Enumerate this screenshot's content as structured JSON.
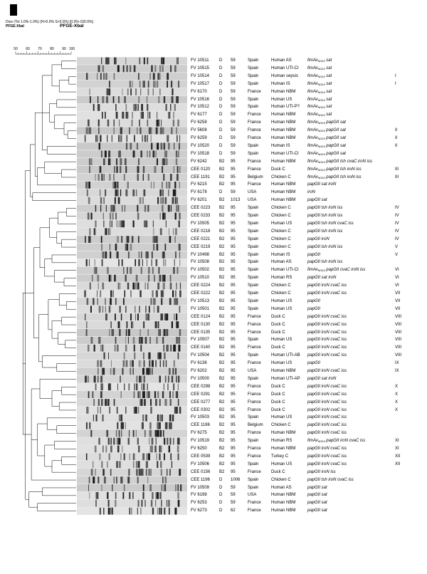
{
  "header": {
    "line1": "Dice (Tol 1.0%-1.0%) (H>0.0% S>0.0%) [0.0%-100.0%]",
    "line2": "PFGE-XbaI",
    "method_title": "PFGE-XbaI"
  },
  "scale": {
    "ticks": [
      "50",
      "60",
      "70",
      "80",
      "90",
      "100"
    ]
  },
  "subscript": "M119",
  "rows": [
    {
      "id": "FV 10511",
      "pg": "D",
      "st": "59",
      "country": "Spain",
      "source": "Human AS",
      "genes": "sat",
      "m119": true,
      "cluster": ""
    },
    {
      "id": "FV 10515",
      "pg": "D",
      "st": "59",
      "country": "Spain",
      "source": "Human UTI-CI",
      "genes": "sat",
      "m119": true,
      "cluster": ""
    },
    {
      "id": "FV 10514",
      "pg": "D",
      "st": "59",
      "country": "Spain",
      "source": "Human sepsis",
      "genes": "sat",
      "m119": true,
      "cluster": "I"
    },
    {
      "id": "FV 10517",
      "pg": "D",
      "st": "59",
      "country": "Spain",
      "source": "Human IS",
      "genes": "sat",
      "m119": true,
      "cluster": "I"
    },
    {
      "id": "FV 6170",
      "pg": "D",
      "st": "59",
      "country": "France",
      "source": "Human NBM",
      "genes": "sat",
      "m119": true,
      "cluster": ""
    },
    {
      "id": "FV 10516",
      "pg": "D",
      "st": "59",
      "country": "Spain",
      "source": "Human US",
      "genes": "sat",
      "m119": true,
      "cluster": ""
    },
    {
      "id": "FV 10512",
      "pg": "D",
      "st": "59",
      "country": "Spain",
      "source": "Human UTI-P?",
      "genes": "sat",
      "m119": true,
      "cluster": ""
    },
    {
      "id": "FV 6177",
      "pg": "D",
      "st": "59",
      "country": "France",
      "source": "Human NBM",
      "genes": "sat",
      "m119": true,
      "cluster": ""
    },
    {
      "id": "FV 6258",
      "pg": "D",
      "st": "59",
      "country": "France",
      "source": "Human NBM",
      "genes": "papGII sat",
      "m119": true,
      "cluster": ""
    },
    {
      "id": "FV 5608",
      "pg": "D",
      "st": "59",
      "country": "France",
      "source": "Human NBM",
      "genes": "papGII sat",
      "m119": true,
      "cluster": "II"
    },
    {
      "id": "FV 6259",
      "pg": "D",
      "st": "59",
      "country": "France",
      "source": "Human NBM",
      "genes": "papGII sat",
      "m119": true,
      "cluster": "II"
    },
    {
      "id": "FV 10520",
      "pg": "D",
      "st": "59",
      "country": "Spain",
      "source": "Human IS",
      "genes": "papGII sat",
      "m119": true,
      "cluster": "II"
    },
    {
      "id": "FV 10518",
      "pg": "D",
      "st": "59",
      "country": "Spain",
      "source": "Human UTI-CI",
      "genes": "papGII sat",
      "m119": true,
      "cluster": ""
    },
    {
      "id": "FV 6242",
      "pg": "B2",
      "st": "95",
      "country": "France",
      "source": "Human NBM",
      "genes": "papGII tsh cvaC iroN iss",
      "m119": true,
      "cluster": ""
    },
    {
      "id": "CEE 0120",
      "pg": "B2",
      "st": "95",
      "country": "France",
      "source": "Duck C",
      "genes": "papGII tsh iroN iss",
      "m119": true,
      "cluster": "III"
    },
    {
      "id": "CEE 1191",
      "pg": "B2",
      "st": "95",
      "country": "Belgium",
      "source": "Chicken C",
      "genes": "papGII tsh iroN iss",
      "m119": true,
      "cluster": "III"
    },
    {
      "id": "FV 6215",
      "pg": "B2",
      "st": "95",
      "country": "France",
      "source": "Human NBM",
      "genes": "papGII sat iroN",
      "m119": false,
      "cluster": ""
    },
    {
      "id": "FV 6178",
      "pg": "D",
      "st": "59",
      "country": "USA",
      "source": "Human NBM",
      "genes": "iroN",
      "m119": false,
      "cluster": ""
    },
    {
      "id": "FV 6201",
      "pg": "B2",
      "st": "1013",
      "country": "USA",
      "source": "Human NBM",
      "genes": "papGII sat",
      "m119": false,
      "cluster": ""
    },
    {
      "id": "CEE 0223",
      "pg": "B2",
      "st": "95",
      "country": "Spain",
      "source": "Chicken C",
      "genes": "papGII tsh iroN iss",
      "m119": false,
      "cluster": "IV"
    },
    {
      "id": "CEE 0233",
      "pg": "B2",
      "st": "95",
      "country": "Spain",
      "source": "Chicken C",
      "genes": "papGII tsh iroN iss",
      "m119": false,
      "cluster": "IV"
    },
    {
      "id": "FV 10505",
      "pg": "B2",
      "st": "95",
      "country": "Spain",
      "source": "Human US",
      "genes": "papGII tsh iroN cvaC iss",
      "m119": false,
      "cluster": "IV"
    },
    {
      "id": "CEE 0218",
      "pg": "B2",
      "st": "95",
      "country": "Spain",
      "source": "Chicken C",
      "genes": "papGII tsh iroN iss",
      "m119": false,
      "cluster": "IV"
    },
    {
      "id": "CEE 0221",
      "pg": "B2",
      "st": "95",
      "country": "Spain",
      "source": "Chicken C",
      "genes": "papGII iroN",
      "m119": false,
      "cluster": "IV"
    },
    {
      "id": "CEE 0219",
      "pg": "B2",
      "st": "95",
      "country": "Spain",
      "source": "Chicken C",
      "genes": "papGII tsh iroN iss",
      "m119": false,
      "cluster": "V"
    },
    {
      "id": "FV 10498",
      "pg": "B2",
      "st": "95",
      "country": "Spain",
      "source": "Human IS",
      "genes": "papGII",
      "m119": false,
      "cluster": "V"
    },
    {
      "id": "FV 10508",
      "pg": "B2",
      "st": "95",
      "country": "Spain",
      "source": "Human AS",
      "genes": "papGII tsh iroN iss",
      "m119": false,
      "cluster": ""
    },
    {
      "id": "FV 10502",
      "pg": "B2",
      "st": "95",
      "country": "Spain",
      "source": "Human UTI-CI",
      "genes": "papGII cvaC iroN iss",
      "m119": true,
      "cluster": "VI"
    },
    {
      "id": "FV 10510",
      "pg": "B2",
      "st": "95",
      "country": "Spain",
      "source": "Human RS",
      "genes": "papGII sat iroN",
      "m119": false,
      "cluster": "VI"
    },
    {
      "id": "CEE 0224",
      "pg": "B2",
      "st": "95",
      "country": "Spain",
      "source": "Chicken C",
      "genes": "papGII iroN cvaC iss",
      "m119": false,
      "cluster": "VI"
    },
    {
      "id": "CEE 0222",
      "pg": "B2",
      "st": "95",
      "country": "Spain",
      "source": "Chicken C",
      "genes": "papGII iroN cvaC iss",
      "m119": false,
      "cluster": "VII"
    },
    {
      "id": "FV 10513",
      "pg": "B2",
      "st": "95",
      "country": "Spain",
      "source": "Human US",
      "genes": "papGII",
      "m119": false,
      "cluster": "VII"
    },
    {
      "id": "FV 10501",
      "pg": "B2",
      "st": "95",
      "country": "Spain",
      "source": "Human US",
      "genes": "papGII",
      "m119": false,
      "cluster": "VII"
    },
    {
      "id": "CEE 0124",
      "pg": "B2",
      "st": "95",
      "country": "France",
      "source": "Duck C",
      "genes": "papGII iroN cvaC iss",
      "m119": false,
      "cluster": "VIII"
    },
    {
      "id": "CEE 0130",
      "pg": "B2",
      "st": "95",
      "country": "France",
      "source": "Duck C",
      "genes": "papGII iroN cvaC iss",
      "m119": false,
      "cluster": "VIII"
    },
    {
      "id": "CEE 0135",
      "pg": "B2",
      "st": "95",
      "country": "France",
      "source": "Duck C",
      "genes": "papGII iroN cvaC iss",
      "m119": false,
      "cluster": "VIII"
    },
    {
      "id": "FV 10507",
      "pg": "B2",
      "st": "95",
      "country": "Spain",
      "source": "Human US",
      "genes": "papGII iroN cvaC iss",
      "m119": false,
      "cluster": "VIII"
    },
    {
      "id": "CEE 0140",
      "pg": "B2",
      "st": "95",
      "country": "France",
      "source": "Duck C",
      "genes": "papGII iroN cvaC iss",
      "m119": false,
      "cluster": "VIII"
    },
    {
      "id": "FV 10504",
      "pg": "B2",
      "st": "95",
      "country": "Spain",
      "source": "Human UTI-AB",
      "genes": "papGII iroN cvaC iss",
      "m119": false,
      "cluster": "VIII"
    },
    {
      "id": "FV 6138",
      "pg": "B2",
      "st": "95",
      "country": "France",
      "source": "Human US",
      "genes": "papGII",
      "m119": false,
      "cluster": "IX"
    },
    {
      "id": "FV 6202",
      "pg": "B2",
      "st": "95",
      "country": "USA",
      "source": "Human NBM",
      "genes": "papGII iroN cvaC iss",
      "m119": false,
      "cluster": "IX"
    },
    {
      "id": "FV 10500",
      "pg": "B2",
      "st": "95",
      "country": "Spain",
      "source": "Human UTI-AP",
      "genes": "papGII sat iroN",
      "m119": false,
      "cluster": ""
    },
    {
      "id": "CEE 0298",
      "pg": "B2",
      "st": "95",
      "country": "France",
      "source": "Duck C",
      "genes": "papGII iroN cvaC iss",
      "m119": false,
      "cluster": "X"
    },
    {
      "id": "CEE 0291",
      "pg": "B2",
      "st": "95",
      "country": "France",
      "source": "Duck C",
      "genes": "papGII iroN cvaC iss",
      "m119": false,
      "cluster": "X"
    },
    {
      "id": "CEE 0277",
      "pg": "B2",
      "st": "95",
      "country": "France",
      "source": "Duck C",
      "genes": "papGII iroN cvaC iss",
      "m119": false,
      "cluster": "X"
    },
    {
      "id": "CEE 0302",
      "pg": "B2",
      "st": "95",
      "country": "France",
      "source": "Duck C",
      "genes": "papGII iroN cvaC iss",
      "m119": false,
      "cluster": "X"
    },
    {
      "id": "FV 10503",
      "pg": "B2",
      "st": "95",
      "country": "Spain",
      "source": "Human US",
      "genes": "papGII iroN cvaC iss",
      "m119": false,
      "cluster": ""
    },
    {
      "id": "CEE 1186",
      "pg": "B2",
      "st": "95",
      "country": "Belgium",
      "source": "Chicken C",
      "genes": "papGII iroN cvaC iss",
      "m119": false,
      "cluster": ""
    },
    {
      "id": "FV 6275",
      "pg": "B2",
      "st": "95",
      "country": "France",
      "source": "Human NBM",
      "genes": "papGII iroN cvaC iss",
      "m119": false,
      "cluster": ""
    },
    {
      "id": "FV 10519",
      "pg": "B2",
      "st": "95",
      "country": "Spain",
      "source": "Human RS",
      "genes": "papGII iroN cvaC iss",
      "m119": true,
      "cluster": "XI"
    },
    {
      "id": "FV 6250",
      "pg": "B2",
      "st": "95",
      "country": "France",
      "source": "Human NBM",
      "genes": "papGII iroN cvaC iss",
      "m119": false,
      "cluster": "XI"
    },
    {
      "id": "CEE 0539",
      "pg": "B2",
      "st": "95",
      "country": "France",
      "source": "Turkey C",
      "genes": "papGII iroN cvaC iss",
      "m119": false,
      "cluster": "XII"
    },
    {
      "id": "FV 10506",
      "pg": "B2",
      "st": "95",
      "country": "Spain",
      "source": "Human US",
      "genes": "papGII iroN cvaC iss",
      "m119": false,
      "cluster": "XII"
    },
    {
      "id": "CEE 0156",
      "pg": "B2",
      "st": "95",
      "country": "France",
      "source": "Duck C",
      "genes": "papGII iroN iss",
      "m119": false,
      "cluster": ""
    },
    {
      "id": "CEE 1196",
      "pg": "D",
      "st": "1006",
      "country": "Spain",
      "source": "Chicken C",
      "genes": "papGII tsh iroN cvaC iss",
      "m119": false,
      "cluster": ""
    },
    {
      "id": "FV 10509",
      "pg": "D",
      "st": "59",
      "country": "Spain",
      "source": "Human AS",
      "genes": "papGII sat",
      "m119": false,
      "cluster": ""
    },
    {
      "id": "FV 6198",
      "pg": "D",
      "st": "59",
      "country": "USA",
      "source": "Human NBM",
      "genes": "papGII sat",
      "m119": false,
      "cluster": ""
    },
    {
      "id": "FV 6253",
      "pg": "D",
      "st": "59",
      "country": "France",
      "source": "Human NBM",
      "genes": "papGII sat",
      "m119": false,
      "cluster": ""
    },
    {
      "id": "FV 6273",
      "pg": "D",
      "st": "62",
      "country": "France",
      "source": "Human NBM",
      "genes": "papGII sat",
      "m119": false,
      "cluster": ""
    }
  ]
}
